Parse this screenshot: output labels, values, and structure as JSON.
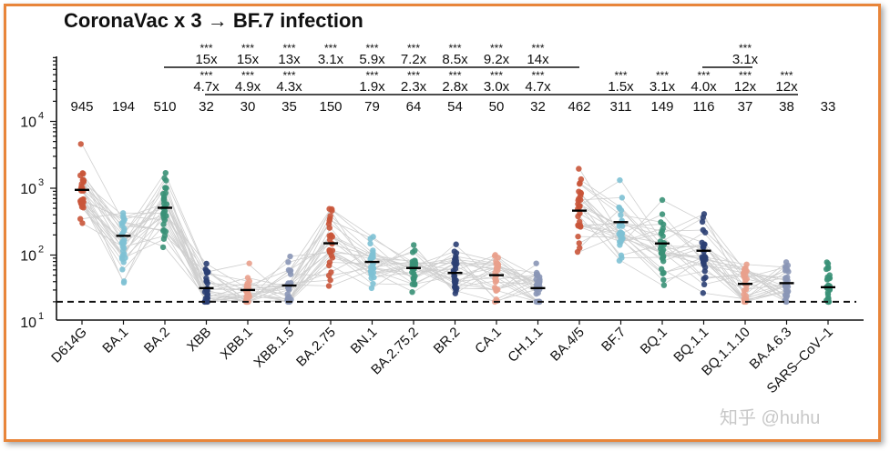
{
  "chart_data": {
    "type": "scatter",
    "title": "CoronaVac x 3 → BF.7 infection",
    "ylabel": "",
    "xlabel": "",
    "y_scale": "log",
    "ylim": [
      10,
      50000
    ],
    "y_ticks": [
      {
        "base": "10",
        "exp": "1"
      },
      {
        "base": "10",
        "exp": "2"
      },
      {
        "base": "10",
        "exp": "3"
      },
      {
        "base": "10",
        "exp": "4"
      }
    ],
    "detection_limit": 20,
    "categories": [
      "D614G",
      "BA.1",
      "BA.2",
      "XBB",
      "XBB.1",
      "XBB.1.5",
      "BA.2.75",
      "BN.1",
      "BA.2.75.2",
      "BR.2",
      "CA.1",
      "CH.1.1",
      "BA.4/5",
      "BF.7",
      "BQ.1",
      "BQ.1.1",
      "BQ.1.1.10",
      "BA.4.6.3",
      "SARS–CoV–1"
    ],
    "colors": [
      "#c9553a",
      "#7ec1d4",
      "#3a9177",
      "#2b3f73",
      "#e9a08c",
      "#8a96b6",
      "#c9553a",
      "#7ec1d4",
      "#3a9177",
      "#2b3f73",
      "#e9a08c",
      "#8a96b6",
      "#c9553a",
      "#7ec1d4",
      "#3a9177",
      "#2b3f73",
      "#e9a08c",
      "#8a96b6",
      "#3a9177"
    ],
    "geometric_means": [
      945,
      194,
      510,
      32,
      30,
      35,
      150,
      79,
      64,
      54,
      50,
      32,
      462,
      311,
      149,
      116,
      37,
      38,
      33
    ],
    "gmt_labels": [
      "945",
      "194",
      "510",
      "32",
      "30",
      "35",
      "150",
      "79",
      "64",
      "54",
      "50",
      "32",
      "462",
      "311",
      "149",
      "116",
      "37",
      "38",
      "33"
    ],
    "comparisons_row1": [
      {
        "category": "XBB",
        "fold": "15x",
        "sig": "***"
      },
      {
        "category": "XBB.1",
        "fold": "15x",
        "sig": "***"
      },
      {
        "category": "XBB.1.5",
        "fold": "13x",
        "sig": "***"
      },
      {
        "category": "BA.2.75",
        "fold": "3.1x",
        "sig": "***"
      },
      {
        "category": "BN.1",
        "fold": "5.9x",
        "sig": "***"
      },
      {
        "category": "BA.2.75.2",
        "fold": "7.2x",
        "sig": "***"
      },
      {
        "category": "BR.2",
        "fold": "8.5x",
        "sig": "***"
      },
      {
        "category": "CA.1",
        "fold": "9.2x",
        "sig": "***"
      },
      {
        "category": "CH.1.1",
        "fold": "14x",
        "sig": "***"
      }
    ],
    "comparisons_row2": [
      {
        "category": "XBB",
        "fold": "4.7x",
        "sig": "***"
      },
      {
        "category": "XBB.1",
        "fold": "4.9x",
        "sig": "***"
      },
      {
        "category": "XBB.1.5",
        "fold": "4.3x",
        "sig": "***"
      },
      {
        "category": "BN.1",
        "fold": "1.9x",
        "sig": "***"
      },
      {
        "category": "BA.2.75.2",
        "fold": "2.3x",
        "sig": "***"
      },
      {
        "category": "BR.2",
        "fold": "2.8x",
        "sig": "***"
      },
      {
        "category": "CA.1",
        "fold": "3.0x",
        "sig": "***"
      },
      {
        "category": "CH.1.1",
        "fold": "4.7x",
        "sig": "***"
      }
    ],
    "comparisons_right_row1": [
      {
        "category": "BQ.1.1.10",
        "fold": "3.1x",
        "sig": "***"
      }
    ],
    "comparisons_right_row2": [
      {
        "category": "BF.7",
        "fold": "1.5x",
        "sig": "***"
      },
      {
        "category": "BQ.1",
        "fold": "3.1x",
        "sig": "***"
      },
      {
        "category": "BQ.1.1",
        "fold": "4.0x",
        "sig": "***"
      },
      {
        "category": "BQ.1.1.10",
        "fold": "12x",
        "sig": "***"
      },
      {
        "category": "BA.4.6.3",
        "fold": "12x",
        "sig": "***"
      }
    ],
    "grid": false,
    "connected_pairs": true
  },
  "watermark": "知乎 @huhu"
}
